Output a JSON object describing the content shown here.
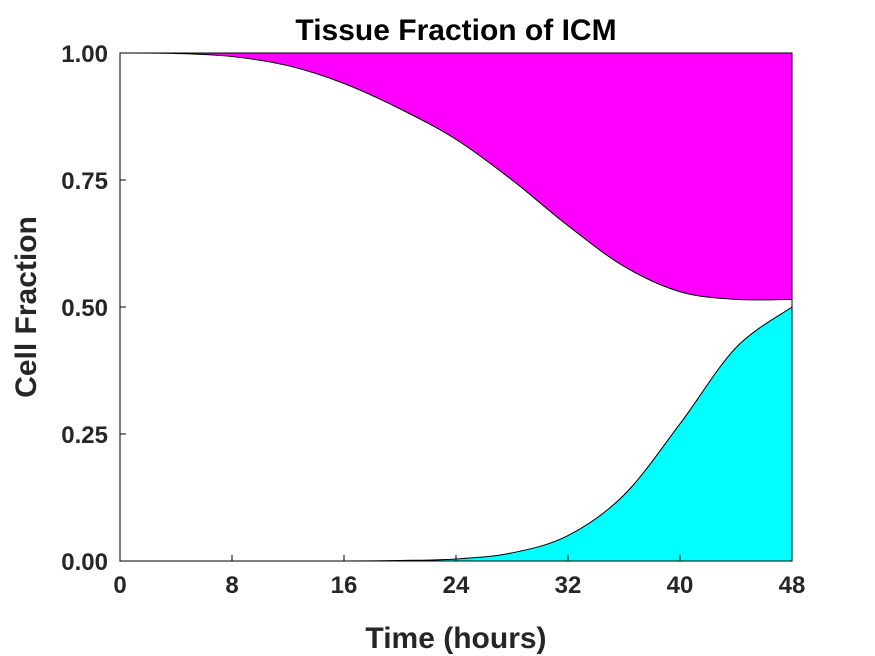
{
  "chart_data": {
    "type": "area",
    "title": "Tissue Fraction of ICM",
    "xlabel": "Time (hours)",
    "ylabel": "Cell Fraction",
    "xlim": [
      0,
      48
    ],
    "ylim": [
      0,
      1
    ],
    "xticks": [
      "0",
      "8",
      "16",
      "24",
      "32",
      "40",
      "48"
    ],
    "yticks": [
      "0.00",
      "0.25",
      "0.50",
      "0.75",
      "1.00"
    ],
    "grid": false,
    "x": [
      0,
      4,
      8,
      12,
      16,
      20,
      24,
      28,
      32,
      36,
      40,
      44,
      48
    ],
    "series": [
      {
        "color": "#00ffff",
        "lower": [
          0,
          0,
          0,
          0,
          0,
          0,
          0,
          0,
          0,
          0,
          0,
          0,
          0
        ],
        "upper": [
          0.0,
          0.0,
          0.0,
          0.0,
          0.0,
          0.001,
          0.004,
          0.016,
          0.05,
          0.13,
          0.27,
          0.42,
          0.5
        ]
      },
      {
        "color": "#ff00ff",
        "lower": [
          1.0,
          0.999,
          0.993,
          0.975,
          0.94,
          0.89,
          0.83,
          0.75,
          0.66,
          0.58,
          0.53,
          0.515,
          0.515
        ],
        "upper": [
          1,
          1,
          1,
          1,
          1,
          1,
          1,
          1,
          1,
          1,
          1,
          1,
          1
        ]
      }
    ]
  }
}
